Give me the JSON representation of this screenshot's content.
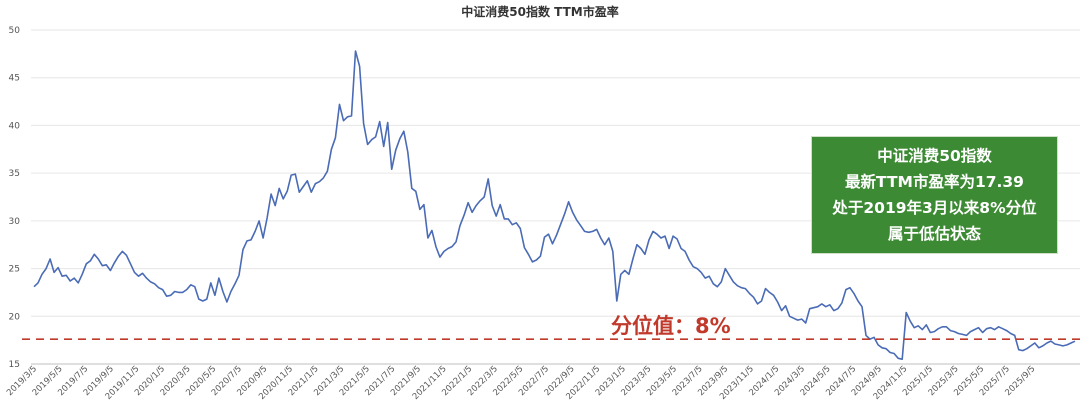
{
  "chart_data": {
    "type": "line",
    "title": "中证消费50指数 TTM市盈率",
    "ylim": [
      15,
      50
    ],
    "y_ticks": [
      "15",
      "20",
      "25",
      "30",
      "35",
      "40",
      "45",
      "50"
    ],
    "x_tick_labels": [
      "2019/3/5",
      "2019/5/5",
      "2019/7/5",
      "2019/9/5",
      "2019/11/5",
      "2020/1/5",
      "2020/3/5",
      "2020/5/5",
      "2020/7/5",
      "2020/9/5",
      "2020/11/5",
      "2021/1/5",
      "2021/3/5",
      "2021/5/5",
      "2021/7/5",
      "2021/9/5",
      "2021/11/5",
      "2022/1/5",
      "2022/3/5",
      "2022/5/5",
      "2022/7/5",
      "2022/9/5",
      "2022/11/5",
      "2023/1/5",
      "2023/3/5",
      "2023/5/5",
      "2023/7/5",
      "2023/9/5",
      "2023/11/5",
      "2024/1/5",
      "2024/3/5",
      "2024/5/5",
      "2024/7/5",
      "2024/9/5",
      "2024/11/5",
      "2025/1/5",
      "2025/3/5",
      "2025/5/5",
      "2025/7/5",
      "2025/9/5"
    ],
    "series": [
      {
        "values": [
          23.1,
          23.5,
          24.4,
          25.0,
          26.0,
          24.6,
          25.1,
          24.2,
          24.3,
          23.7,
          24.0,
          23.5,
          24.4,
          25.5,
          25.8,
          26.5,
          26.0,
          25.3,
          25.4,
          24.8,
          25.6,
          26.3,
          26.8,
          26.4,
          25.5,
          24.6,
          24.2,
          24.5,
          24.0,
          23.6,
          23.4,
          23.0,
          22.8,
          22.1,
          22.2,
          22.6,
          22.5,
          22.5,
          22.8,
          23.3,
          23.1,
          21.8,
          21.6,
          21.8,
          23.5,
          22.2,
          24.0,
          22.6,
          21.5,
          22.6,
          23.4,
          24.3,
          27.0,
          27.9,
          28.0,
          28.9,
          30.0,
          28.2,
          30.3,
          32.8,
          31.6,
          33.4,
          32.3,
          33.1,
          34.8,
          34.9,
          33.0,
          33.6,
          34.2,
          33.0,
          33.9,
          34.1,
          34.5,
          35.2,
          37.5,
          38.7,
          42.2,
          40.5,
          40.9,
          41.0,
          47.8,
          46.2,
          40.2,
          38.0,
          38.5,
          38.8,
          40.4,
          37.8,
          40.3,
          35.4,
          37.4,
          38.6,
          39.4,
          37.2,
          33.4,
          33.1,
          31.2,
          31.7,
          28.2,
          29.0,
          27.3,
          26.2,
          26.8,
          27.1,
          27.3,
          27.8,
          29.5,
          30.6,
          31.9,
          30.9,
          31.6,
          32.1,
          32.5,
          34.4,
          31.6,
          30.5,
          31.7,
          30.2,
          30.2,
          29.6,
          29.8,
          29.2,
          27.2,
          26.5,
          25.7,
          25.9,
          26.3,
          28.3,
          28.6,
          27.6,
          28.5,
          29.6,
          30.7,
          32.0,
          30.9,
          30.1,
          29.5,
          28.9,
          28.8,
          28.9,
          29.1,
          28.2,
          27.5,
          28.2,
          26.8,
          21.6,
          24.4,
          24.8,
          24.4,
          26.0,
          27.5,
          27.1,
          26.5,
          28.0,
          28.9,
          28.6,
          28.2,
          28.4,
          27.1,
          28.4,
          28.1,
          27.1,
          26.8,
          25.9,
          25.2,
          25.0,
          24.6,
          24.0,
          24.2,
          23.4,
          23.1,
          23.6,
          25.0,
          24.3,
          23.6,
          23.2,
          23.0,
          22.9,
          22.4,
          22.0,
          21.3,
          21.6,
          22.9,
          22.5,
          22.2,
          21.5,
          20.6,
          21.1,
          20.0,
          19.8,
          19.6,
          19.7,
          19.3,
          20.8,
          20.9,
          21.0,
          21.3,
          21.0,
          21.2,
          20.6,
          20.8,
          21.4,
          22.8,
          23.0,
          22.4,
          21.6,
          21.0,
          18.0,
          17.6,
          17.8,
          17.0,
          16.7,
          16.6,
          16.2,
          16.1,
          15.6,
          15.5,
          20.4,
          19.5,
          18.8,
          19.0,
          18.6,
          19.1,
          18.3,
          18.4,
          18.7,
          18.9,
          18.9,
          18.5,
          18.4,
          18.2,
          18.1,
          18.0,
          18.4,
          18.6,
          18.8,
          18.3,
          18.7,
          18.8,
          18.6,
          18.9,
          18.7,
          18.5,
          18.2,
          18.0,
          16.5,
          16.4,
          16.6,
          16.9,
          17.2,
          16.7,
          16.9,
          17.2,
          17.4,
          17.1,
          17.0,
          16.9,
          17.0,
          17.2,
          17.39
        ]
      }
    ],
    "reference_line": {
      "value": 17.6,
      "label": "分位值：8%"
    },
    "grid": true,
    "legend": "none"
  },
  "annotation": {
    "lines": [
      "中证消费50指数",
      "最新TTM市盈率为17.39",
      "处于2019年3月以来8%分位",
      "属于低估状态"
    ]
  },
  "colors": {
    "series": "#4a6bb5",
    "reference": "#c0392b",
    "annotation_bg": "#3d8a34",
    "percentile_text": "#c0392b"
  }
}
